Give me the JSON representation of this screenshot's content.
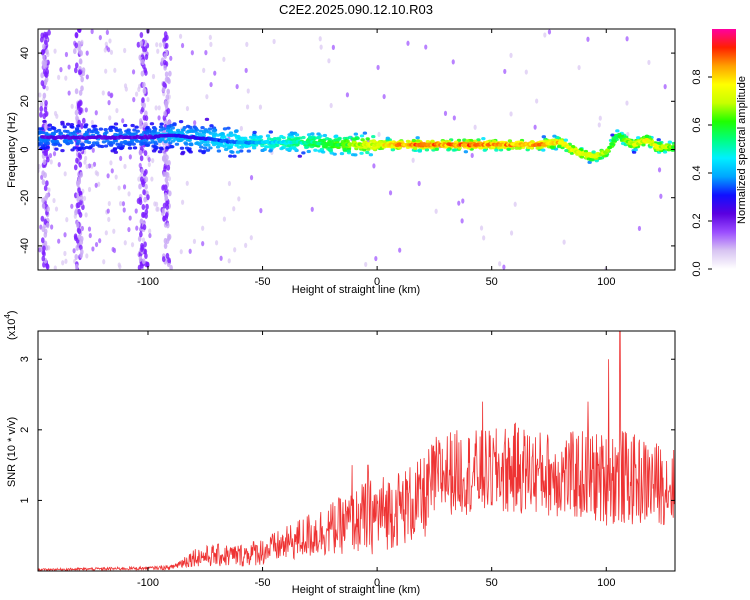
{
  "title": "C2E2.2025.090.12.10.R03",
  "colors": {
    "snr_line": "#ee3333",
    "colorbar": [
      "#ffffff",
      "#d8c4f2",
      "#9b4dff",
      "#5a00e0",
      "#1010ff",
      "#00a6ff",
      "#00f0ff",
      "#00ff80",
      "#20ff00",
      "#c8ff00",
      "#ffff00",
      "#ffa000",
      "#ff2000",
      "#ff00a0"
    ]
  },
  "chart_data": [
    {
      "type": "heatmap",
      "name_hint": "spectrogram",
      "xlabel": "Height of straight line (km)",
      "ylabel": "Frequency (Hz)",
      "xlim": [
        -148,
        130
      ],
      "ylim": [
        -50,
        50
      ],
      "x_ticks": [
        -100,
        -50,
        0,
        50,
        100
      ],
      "x_tick_labels": [
        "-100",
        "-50",
        "0",
        "50",
        "100"
      ],
      "y_ticks": [
        -40,
        -20,
        0,
        20,
        40
      ],
      "y_tick_labels": [
        "-40",
        "-20",
        "0",
        "20",
        "40"
      ],
      "grid": false,
      "colorbar": {
        "label": "Normalized spectral amplitude",
        "range": [
          0,
          1
        ],
        "ticks": [
          0.0,
          0.2,
          0.4,
          0.6,
          0.8
        ],
        "tick_labels": [
          "0.0",
          "0.2",
          "0.4",
          "0.6",
          "0.8"
        ]
      },
      "ridge": {
        "x": [
          -140,
          -120,
          -100,
          -90,
          -80,
          -70,
          -60,
          -50,
          -40,
          -30,
          -20,
          -10,
          0,
          10,
          20,
          30,
          40,
          50,
          60,
          70,
          80,
          85,
          90,
          95,
          100,
          105,
          108,
          112,
          118,
          122,
          128
        ],
        "y": [
          5,
          5,
          5,
          6,
          5,
          4,
          3,
          3,
          3,
          3,
          2,
          2,
          2,
          2,
          2,
          2,
          2,
          2,
          2,
          2,
          3,
          0,
          -2,
          -3,
          -1,
          6,
          4,
          2,
          4,
          1,
          1
        ],
        "amplitude": [
          0.25,
          0.25,
          0.25,
          0.3,
          0.3,
          0.35,
          0.4,
          0.45,
          0.5,
          0.55,
          0.6,
          0.7,
          0.8,
          0.9,
          0.95,
          0.9,
          0.95,
          0.9,
          0.9,
          0.9,
          0.85,
          0.8,
          0.8,
          0.75,
          0.75,
          0.6,
          0.7,
          0.75,
          0.8,
          0.8,
          0.7
        ]
      },
      "noise_bands_x": [
        -145,
        -130,
        -102,
        -92
      ]
    },
    {
      "type": "line",
      "xlabel": "Height of straight line (km)",
      "ylabel": "SNR (10 * v/v)",
      "y_scale_label": "(x10",
      "y_scale_exp": "4",
      "y_scale_close": ")",
      "xlim": [
        -148,
        130
      ],
      "ylim": [
        0,
        3.4
      ],
      "x_ticks": [
        -100,
        -50,
        0,
        50,
        100
      ],
      "x_tick_labels": [
        "-100",
        "-50",
        "0",
        "50",
        "100"
      ],
      "y_ticks": [
        1,
        2,
        3
      ],
      "y_tick_labels": [
        "1",
        "2",
        "3"
      ],
      "grid": false,
      "series": [
        {
          "envelope_x": [
            -148,
            -120,
            -100,
            -90,
            -85,
            -80,
            -70,
            -60,
            -50,
            -40,
            -30,
            -20,
            -10,
            -5,
            0,
            10,
            20,
            25,
            30,
            40,
            50,
            60,
            70,
            80,
            90,
            100,
            105,
            110,
            120,
            130
          ],
          "envelope_mean": [
            0.02,
            0.03,
            0.04,
            0.05,
            0.12,
            0.2,
            0.22,
            0.22,
            0.28,
            0.38,
            0.5,
            0.6,
            0.7,
            0.75,
            0.8,
            0.9,
            1.0,
            1.3,
            1.4,
            1.4,
            1.4,
            1.45,
            1.4,
            1.35,
            1.35,
            1.3,
            1.35,
            1.3,
            1.25,
            1.2
          ],
          "envelope_spread": [
            0.01,
            0.02,
            0.02,
            0.03,
            0.08,
            0.12,
            0.15,
            0.15,
            0.18,
            0.22,
            0.3,
            0.35,
            0.4,
            0.5,
            0.5,
            0.5,
            0.55,
            0.55,
            0.55,
            0.55,
            0.55,
            0.6,
            0.55,
            0.55,
            0.6,
            0.6,
            0.65,
            0.6,
            0.55,
            0.5
          ],
          "peaks": [
            {
              "x": 106,
              "y": 3.4
            },
            {
              "x": 101,
              "y": 3.0
            },
            {
              "x": 92,
              "y": 2.4
            },
            {
              "x": 46,
              "y": 2.4
            },
            {
              "x": -4,
              "y": 1.5
            },
            {
              "x": -11,
              "y": 1.5
            }
          ]
        }
      ]
    }
  ]
}
